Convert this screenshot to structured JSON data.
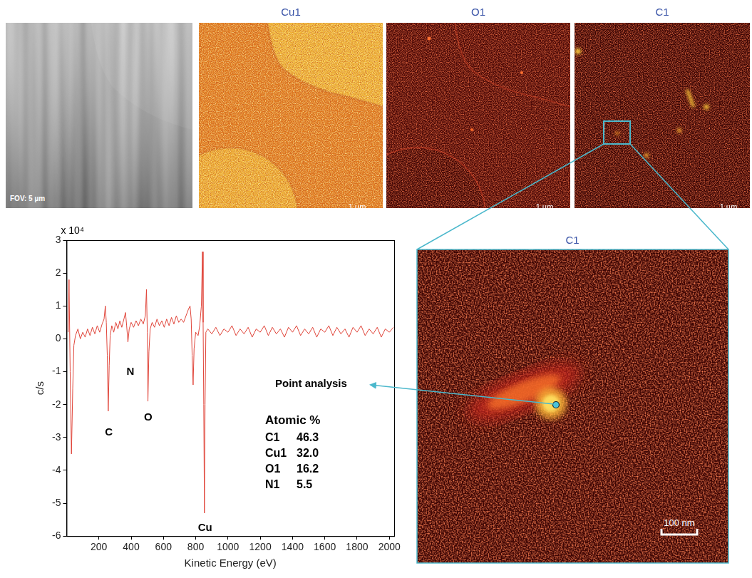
{
  "panels": [
    {
      "type": "image",
      "caption": "FOV: 5 µm"
    },
    {
      "type": "map",
      "title": "Cu1",
      "scale_bar": "1 µm"
    },
    {
      "type": "map",
      "title": "O1",
      "scale_bar": "1 µm"
    },
    {
      "type": "map",
      "title": "C1",
      "scale_bar": "1 µm"
    }
  ],
  "zoom": {
    "title": "C1",
    "scale_bar": "100 nm",
    "annotation": "Point analysis"
  },
  "chart_data": {
    "type": "line",
    "x_label": "Kinetic Energy (eV)",
    "y_label": "c/s",
    "y_multiplier": "x 10⁴",
    "color": "#e0453a",
    "grid": false,
    "xlim": [
      0,
      2030
    ],
    "xticks": [
      200,
      400,
      600,
      800,
      1000,
      1200,
      1400,
      1600,
      1800,
      2000
    ],
    "ylim": [
      -6,
      3
    ],
    "yticks": [
      -6,
      -5,
      -4,
      -3,
      -2,
      -1,
      0,
      1,
      2,
      3
    ],
    "x": [
      10,
      15,
      22,
      30,
      38,
      45,
      55,
      70,
      85,
      100,
      115,
      130,
      145,
      160,
      175,
      190,
      205,
      220,
      232,
      240,
      246,
      252,
      258,
      264,
      270,
      280,
      292,
      305,
      318,
      330,
      342,
      355,
      365,
      372,
      380,
      388,
      400,
      415,
      430,
      445,
      460,
      475,
      488,
      495,
      500,
      504,
      510,
      518,
      530,
      545,
      560,
      575,
      590,
      605,
      620,
      635,
      650,
      665,
      680,
      695,
      710,
      725,
      740,
      755,
      765,
      772,
      778,
      784,
      790,
      800,
      815,
      825,
      835,
      842,
      846,
      850,
      854,
      858,
      863,
      875,
      900,
      925,
      950,
      975,
      1000,
      1025,
      1050,
      1075,
      1100,
      1125,
      1150,
      1175,
      1200,
      1225,
      1250,
      1275,
      1300,
      1325,
      1350,
      1375,
      1400,
      1425,
      1450,
      1475,
      1500,
      1525,
      1550,
      1575,
      1600,
      1625,
      1650,
      1675,
      1700,
      1725,
      1750,
      1775,
      1800,
      1825,
      1850,
      1875,
      1900,
      1925,
      1950,
      1975,
      2000,
      2025
    ],
    "values": [
      0.2,
      1.8,
      -1.0,
      -3.5,
      -1.5,
      -0.2,
      0.1,
      0.3,
      0.0,
      0.2,
      0.05,
      0.3,
      0.1,
      0.35,
      0.15,
      0.4,
      0.2,
      0.45,
      0.6,
      1.0,
      0.5,
      -0.5,
      -2.2,
      -0.8,
      0.1,
      0.4,
      0.2,
      0.5,
      0.3,
      0.55,
      0.35,
      0.6,
      0.8,
      0.4,
      -0.1,
      0.3,
      0.5,
      0.35,
      0.55,
      0.4,
      0.6,
      0.45,
      0.7,
      1.5,
      0.2,
      -1.9,
      -0.4,
      0.3,
      0.5,
      0.35,
      0.6,
      0.4,
      0.55,
      0.35,
      0.6,
      0.4,
      0.65,
      0.45,
      0.7,
      0.5,
      0.6,
      0.5,
      0.7,
      0.9,
      1.0,
      0.6,
      -0.5,
      -1.4,
      -0.3,
      0.2,
      0.1,
      0.4,
      1.0,
      2.65,
      0.5,
      -2.0,
      -5.3,
      -2.0,
      0.2,
      0.3,
      0.15,
      0.35,
      0.1,
      0.3,
      0.2,
      0.4,
      0.1,
      0.3,
      0.15,
      0.35,
      0.05,
      0.3,
      0.2,
      0.4,
      0.1,
      0.35,
      0.15,
      0.3,
      0.05,
      0.35,
      0.2,
      0.4,
      0.1,
      0.3,
      0.15,
      0.35,
      0.05,
      0.3,
      0.2,
      0.4,
      0.1,
      0.35,
      0.15,
      0.3,
      0.05,
      0.35,
      0.2,
      0.4,
      0.1,
      0.3,
      0.15,
      0.35,
      0.05,
      0.3,
      0.2,
      0.35
    ],
    "annotations": [
      {
        "text": "C",
        "x": 262,
        "y": -2.85
      },
      {
        "text": "N",
        "x": 395,
        "y": -1.0
      },
      {
        "text": "O",
        "x": 505,
        "y": -2.4
      },
      {
        "text": "Cu",
        "x": 858,
        "y": -5.75
      }
    ],
    "table": {
      "title": "Atomic %",
      "rows": [
        [
          "C1",
          "46.3"
        ],
        [
          "Cu1",
          "32.0"
        ],
        [
          "O1",
          "16.2"
        ],
        [
          "N1",
          "5.5"
        ]
      ]
    }
  }
}
